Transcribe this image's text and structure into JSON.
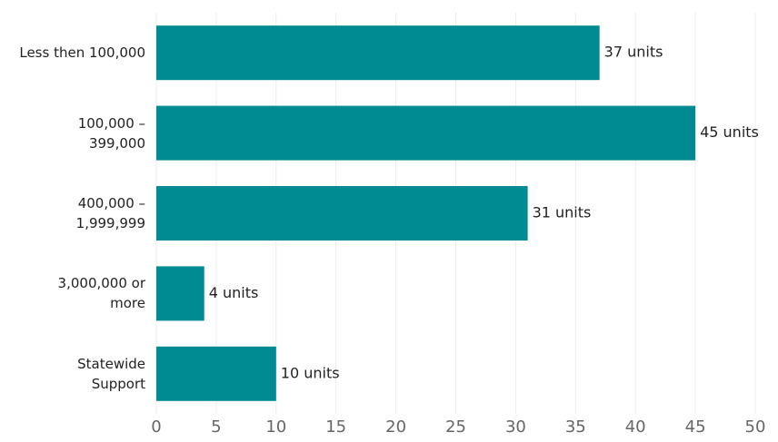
{
  "chart_data": {
    "type": "bar",
    "orientation": "horizontal",
    "categories": [
      "Less then 100,000",
      "100,000 –\n399,000",
      "400,000 –\n1,999,999",
      "3,000,000 or\nmore",
      "Statewide\nSupport"
    ],
    "values": [
      37,
      45,
      31,
      4,
      10
    ],
    "value_labels": [
      "37 units",
      "45 units",
      "31 units",
      "4 units",
      "10 units"
    ],
    "color": "#008b93",
    "xlim": [
      0,
      50
    ],
    "xticks": [
      0,
      5,
      10,
      15,
      20,
      25,
      30,
      35,
      40,
      45,
      50
    ],
    "grid": true
  }
}
